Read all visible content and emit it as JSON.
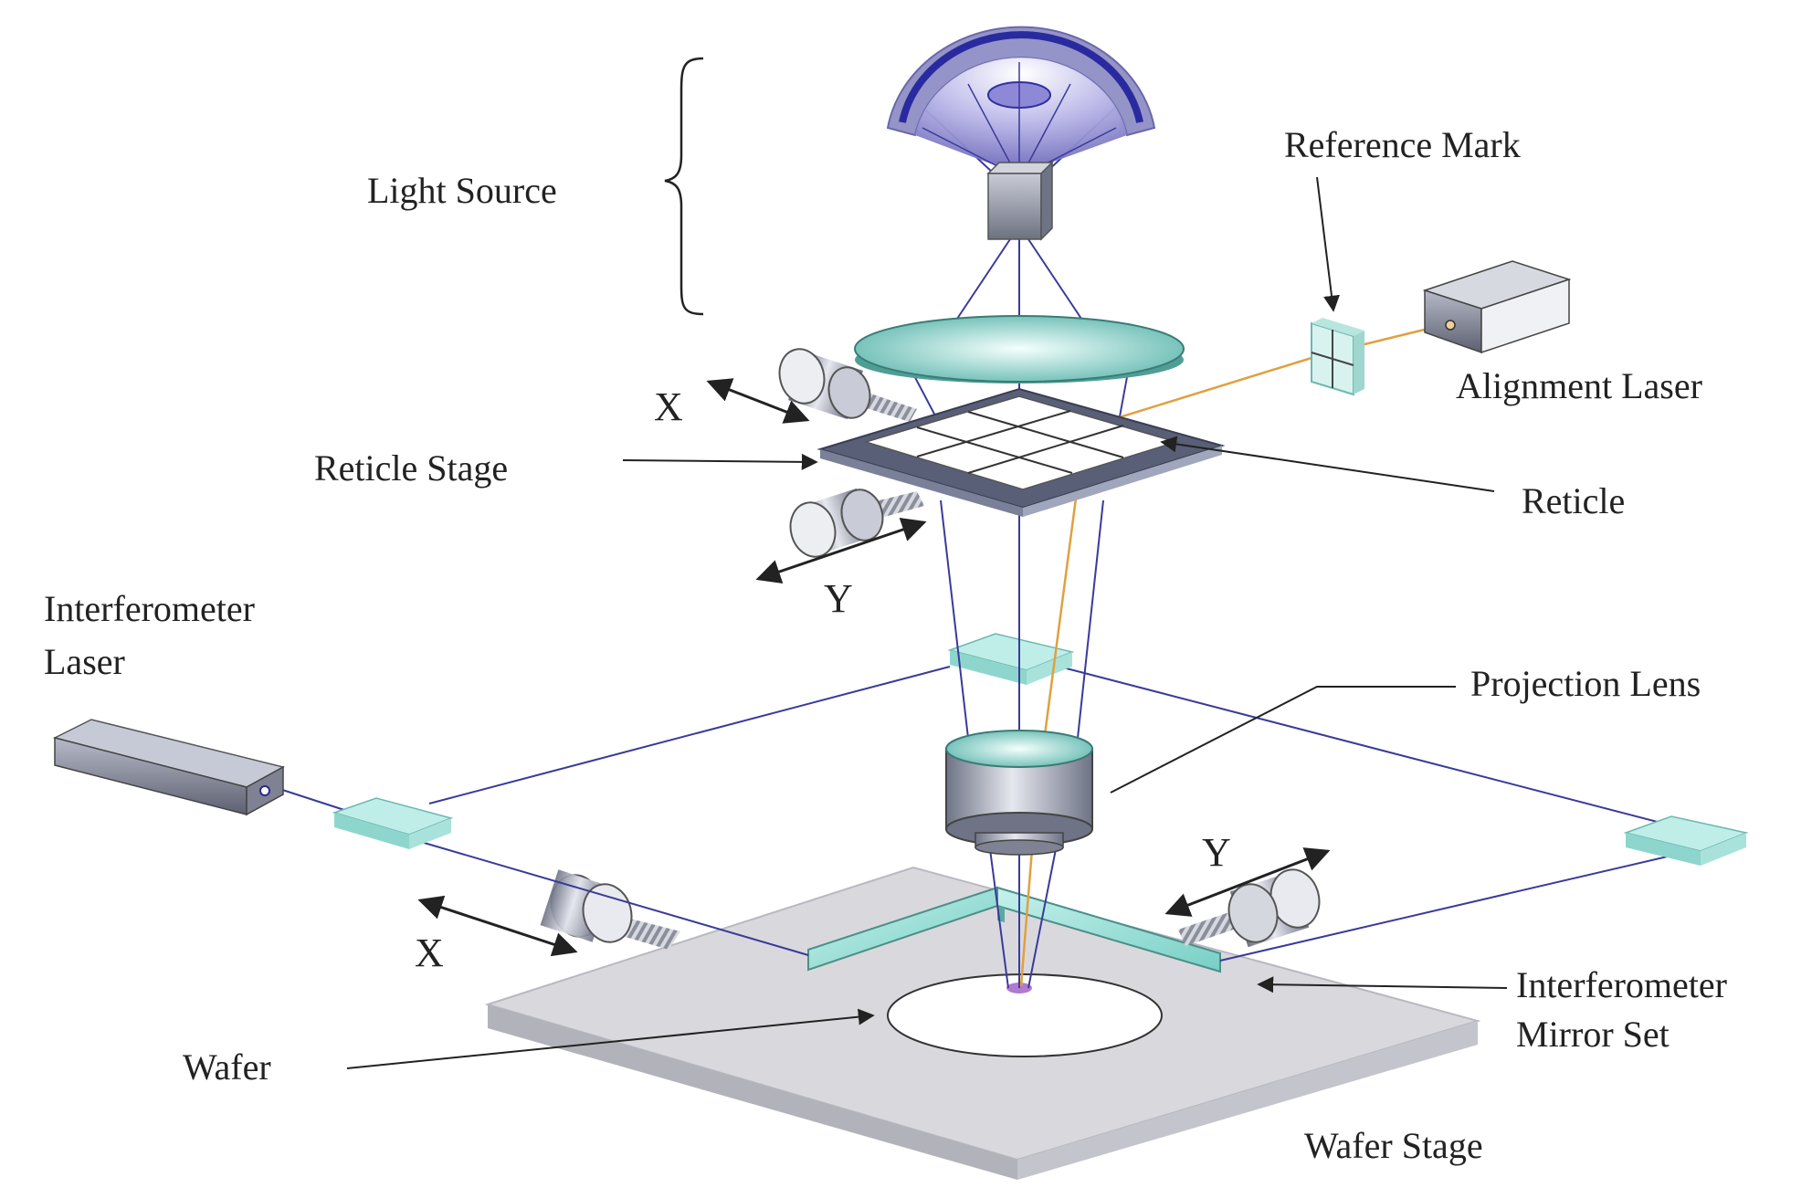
{
  "labels": {
    "light_source": "Light Source",
    "reference_mark": "Reference Mark",
    "alignment_laser": "Alignment Laser",
    "reticle_stage": "Reticle Stage",
    "reticle": "Reticle",
    "interferometer_laser_line1": "Interferometer",
    "interferometer_laser_line2": "Laser",
    "projection_lens": "Projection Lens",
    "interferometer_mirror_line1": "Interferometer",
    "interferometer_mirror_line2": "Mirror Set",
    "wafer": "Wafer",
    "wafer_stage": "Wafer Stage"
  },
  "axes": {
    "reticle_x": "X",
    "reticle_y": "Y",
    "wafer_x": "X",
    "wafer_y": "Y"
  },
  "colors": {
    "beam": "#3a3a9a",
    "alignment_beam": "#e0a040",
    "glass": "#8fd8d0",
    "metal": "#9aa0b0",
    "stage": "#d8d8dc",
    "lamp": "#3030a0"
  }
}
